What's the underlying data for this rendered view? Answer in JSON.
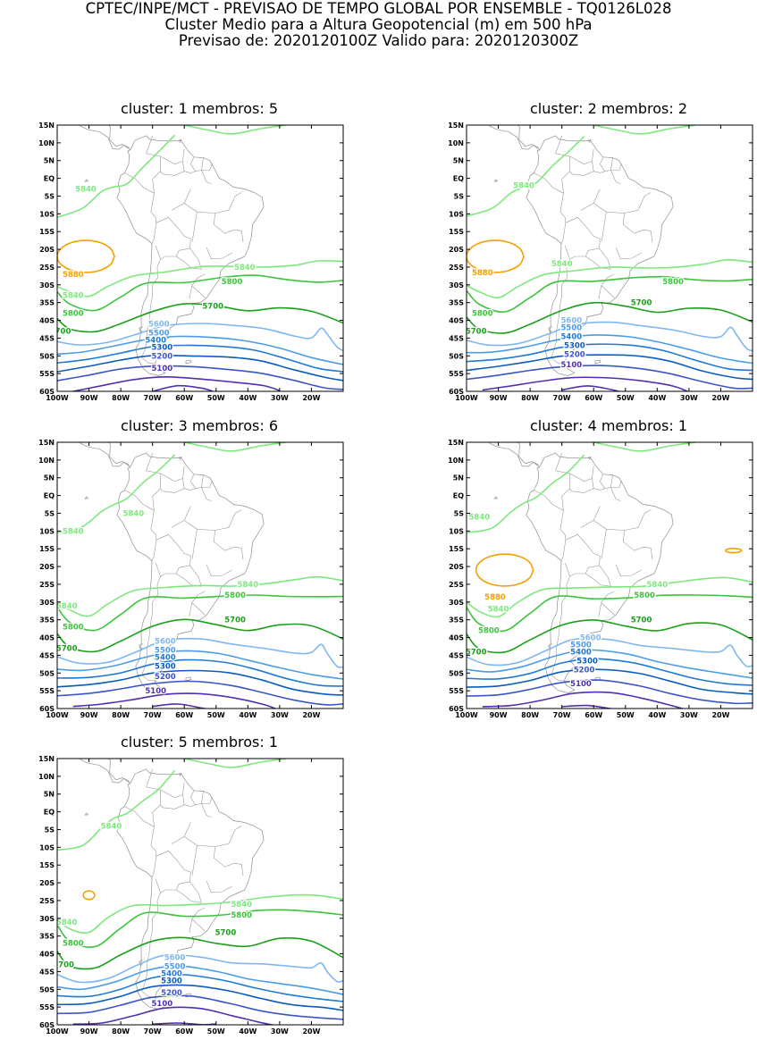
{
  "header": {
    "line1": "CPTEC/INPE/MCT - PREVISAO DE TEMPO GLOBAL POR ENSEMBLE - TQ0126L028",
    "line2": "Cluster Medio para a Altura Geopotencial (m) em 500 hPa",
    "line3": "Previsao de: 2020120100Z    Valido para: 2020120300Z"
  },
  "axes": {
    "lat_ticks": [
      "15N",
      "10N",
      "5N",
      "EQ",
      "5S",
      "10S",
      "15S",
      "20S",
      "25S",
      "30S",
      "35S",
      "40S",
      "45S",
      "50S",
      "55S",
      "60S"
    ],
    "lon_ticks": [
      "100W",
      "90W",
      "80W",
      "70W",
      "60W",
      "50W",
      "40W",
      "30W",
      "20W"
    ]
  },
  "colors": {
    "5880": "#f5a000",
    "5840": "#7ee87e",
    "5800": "#3cc43c",
    "5700": "#1aa01a",
    "5600": "#7fb8f0",
    "5500": "#4a9ce8",
    "5400": "#1e7ad8",
    "5300": "#0a5cc0",
    "5200": "#3a55c8",
    "5100": "#5030b0",
    "coast": "#909090"
  },
  "panels": [
    {
      "title": "cluster: 1   membros: 5",
      "labels": [
        {
          "text": "5840",
          "lon": -91,
          "lat": -3
        },
        {
          "text": "5880",
          "lon": -95,
          "lat": -27
        },
        {
          "text": "5840",
          "lon": -41,
          "lat": -25
        },
        {
          "text": "5840",
          "lon": -95,
          "lat": -33
        },
        {
          "text": "5800",
          "lon": -45,
          "lat": -29
        },
        {
          "text": "5800",
          "lon": -95,
          "lat": -38
        },
        {
          "text": "5700",
          "lon": -51,
          "lat": -36
        },
        {
          "text": "5700",
          "lon": -99,
          "lat": -43
        },
        {
          "text": "5600",
          "lon": -68,
          "lat": -41
        },
        {
          "text": "5500",
          "lon": -68,
          "lat": -43.5
        },
        {
          "text": "5400",
          "lon": -69,
          "lat": -45.5
        },
        {
          "text": "5300",
          "lon": -67,
          "lat": -47.5
        },
        {
          "text": "5200",
          "lon": -67,
          "lat": -50
        },
        {
          "text": "5100",
          "lon": -67,
          "lat": -53.5
        }
      ]
    },
    {
      "title": "cluster: 2   membros: 2",
      "labels": [
        {
          "text": "5840",
          "lon": -82,
          "lat": -2
        },
        {
          "text": "5880",
          "lon": -95,
          "lat": -26.5
        },
        {
          "text": "5840",
          "lon": -70,
          "lat": -24
        },
        {
          "text": "5800",
          "lon": -35,
          "lat": -29
        },
        {
          "text": "5800",
          "lon": -95,
          "lat": -38
        },
        {
          "text": "5700",
          "lon": -45,
          "lat": -35
        },
        {
          "text": "5700",
          "lon": -97,
          "lat": -43
        },
        {
          "text": "5600",
          "lon": -67,
          "lat": -40
        },
        {
          "text": "5500",
          "lon": -67,
          "lat": -42
        },
        {
          "text": "5400",
          "lon": -67,
          "lat": -44.5
        },
        {
          "text": "5300",
          "lon": -66,
          "lat": -47
        },
        {
          "text": "5200",
          "lon": -66,
          "lat": -49.5
        },
        {
          "text": "5100",
          "lon": -67,
          "lat": -52.5
        }
      ]
    },
    {
      "title": "cluster: 3   membros: 6",
      "labels": [
        {
          "text": "5840",
          "lon": -76,
          "lat": -5
        },
        {
          "text": "5840",
          "lon": -95,
          "lat": -10
        },
        {
          "text": "5840",
          "lon": -40,
          "lat": -25
        },
        {
          "text": "5840",
          "lon": -97,
          "lat": -31
        },
        {
          "text": "5800",
          "lon": -44,
          "lat": -28
        },
        {
          "text": "5800",
          "lon": -95,
          "lat": -37
        },
        {
          "text": "5700",
          "lon": -44,
          "lat": -35
        },
        {
          "text": "5700",
          "lon": -97,
          "lat": -43
        },
        {
          "text": "5600",
          "lon": -66,
          "lat": -41
        },
        {
          "text": "5500",
          "lon": -66,
          "lat": -43.5
        },
        {
          "text": "5400",
          "lon": -66,
          "lat": -45.5
        },
        {
          "text": "5300",
          "lon": -66,
          "lat": -48
        },
        {
          "text": "5200",
          "lon": -66,
          "lat": -51
        },
        {
          "text": "5100",
          "lon": -69,
          "lat": -55
        }
      ]
    },
    {
      "title": "cluster: 4   membros: 1",
      "labels": [
        {
          "text": "5840",
          "lon": -96,
          "lat": -6
        },
        {
          "text": "5880",
          "lon": -91,
          "lat": -28.5
        },
        {
          "text": "5840",
          "lon": -40,
          "lat": -25
        },
        {
          "text": "5800",
          "lon": -44,
          "lat": -28
        },
        {
          "text": "5840",
          "lon": -90,
          "lat": -32
        },
        {
          "text": "5800",
          "lon": -93,
          "lat": -38
        },
        {
          "text": "5700",
          "lon": -45,
          "lat": -35
        },
        {
          "text": "5700",
          "lon": -97,
          "lat": -44
        },
        {
          "text": "5600",
          "lon": -61,
          "lat": -40
        },
        {
          "text": "5500",
          "lon": -64,
          "lat": -42
        },
        {
          "text": "5400",
          "lon": -64,
          "lat": -44
        },
        {
          "text": "5300",
          "lon": -62,
          "lat": -46.5
        },
        {
          "text": "5200",
          "lon": -63,
          "lat": -49
        },
        {
          "text": "5100",
          "lon": -64,
          "lat": -53
        }
      ]
    },
    {
      "title": "cluster: 5   membros: 1",
      "labels": [
        {
          "text": "5840",
          "lon": -83,
          "lat": -4
        },
        {
          "text": "5840",
          "lon": -42,
          "lat": -26
        },
        {
          "text": "5800",
          "lon": -42,
          "lat": -29
        },
        {
          "text": "5840",
          "lon": -97,
          "lat": -31
        },
        {
          "text": "5800",
          "lon": -95,
          "lat": -37
        },
        {
          "text": "5700",
          "lon": -47,
          "lat": -34
        },
        {
          "text": "5700",
          "lon": -98,
          "lat": -43
        },
        {
          "text": "5600",
          "lon": -63,
          "lat": -41
        },
        {
          "text": "5500",
          "lon": -63,
          "lat": -43.5
        },
        {
          "text": "5400",
          "lon": -64,
          "lat": -45.5
        },
        {
          "text": "5300",
          "lon": -64,
          "lat": -47.5
        },
        {
          "text": "5200",
          "lon": -64,
          "lat": -51
        },
        {
          "text": "5100",
          "lon": -67,
          "lat": -54
        }
      ]
    }
  ]
}
